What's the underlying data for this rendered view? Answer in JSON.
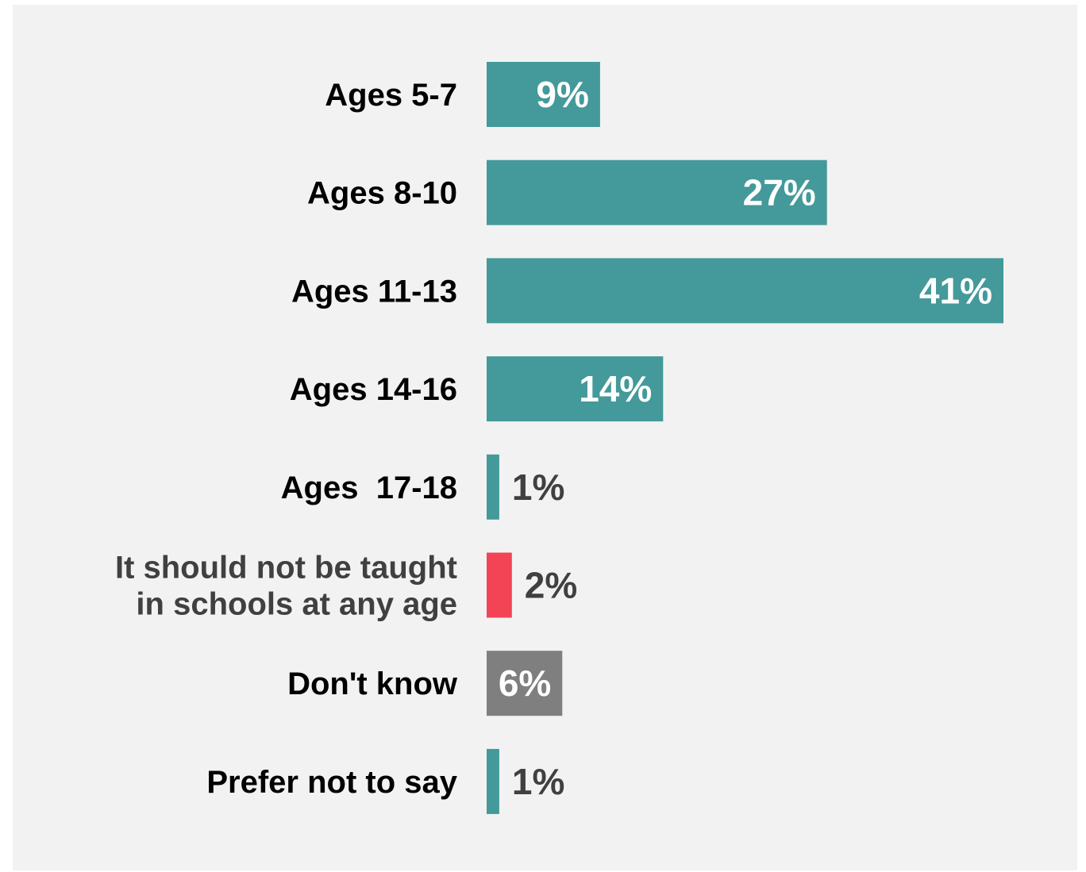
{
  "chart_data": {
    "type": "bar",
    "orientation": "horizontal",
    "title": "",
    "xlabel": "",
    "ylabel": "",
    "xlim": [
      0,
      41
    ],
    "grid": false,
    "legend": "none",
    "colors": {
      "primary": "#44999a",
      "negative": "#f24455",
      "neutral": "#7f7f7f",
      "background": "#f2f2f2",
      "label_dark": "#404040",
      "label_light": "#ffffff",
      "category_text": "#000000"
    },
    "categories": [
      "Ages 5-7",
      "Ages 8-10",
      "Ages 11-13",
      "Ages 14-16",
      "Ages  17-18",
      "It should not be taught in schools at any age",
      "Don't know",
      "Prefer not to say"
    ],
    "category_lines": [
      [
        "Ages 5-7"
      ],
      [
        "Ages 8-10"
      ],
      [
        "Ages 11-13"
      ],
      [
        "Ages 14-16"
      ],
      [
        "Ages  17-18"
      ],
      [
        "It should not be taught",
        "in schools at any age"
      ],
      [
        "Don't know"
      ],
      [
        "Prefer not to say"
      ]
    ],
    "values": [
      9,
      27,
      41,
      14,
      1,
      2,
      6,
      1
    ],
    "value_labels": [
      "9%",
      "27%",
      "41%",
      "14%",
      "1%",
      "2%",
      "6%",
      "1%"
    ],
    "bar_colors": [
      "#44999a",
      "#44999a",
      "#44999a",
      "#44999a",
      "#44999a",
      "#f24455",
      "#7f7f7f",
      "#44999a"
    ],
    "category_text_colors": [
      "#000000",
      "#000000",
      "#000000",
      "#000000",
      "#000000",
      "#404040",
      "#000000",
      "#000000"
    ]
  }
}
